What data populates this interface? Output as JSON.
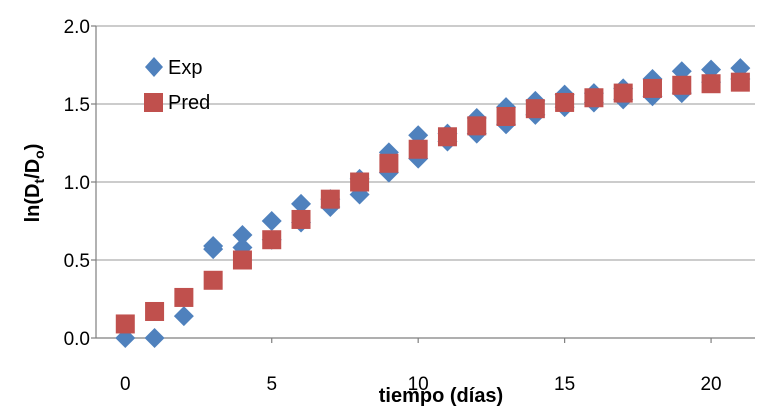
{
  "chart_data": {
    "type": "scatter",
    "title": "",
    "xlabel": "tiempo (días)",
    "ylabel": {
      "base": "ln(D",
      "sub1": "t",
      "mid": "/D",
      "sub2": "o",
      "end": ")"
    },
    "xlim": [
      -1,
      21.5
    ],
    "ylim": [
      0,
      2.0
    ],
    "x_ticks": [
      0,
      5,
      10,
      15,
      20
    ],
    "x_tick_labels": [
      "0",
      "5",
      "10",
      "15",
      "20"
    ],
    "y_ticks": [
      0.0,
      0.5,
      1.0,
      1.5,
      2.0
    ],
    "y_tick_labels": [
      "0.0",
      "0.5",
      "1.0",
      "1.5",
      "2.0"
    ],
    "grid": "horizontal",
    "legend": "top-left",
    "series": [
      {
        "name": "Exp",
        "marker": "diamond",
        "color": "#4f81bd",
        "points": [
          [
            0,
            0.0
          ],
          [
            1,
            0.0
          ],
          [
            2,
            0.14
          ],
          [
            3,
            0.57
          ],
          [
            3,
            0.59
          ],
          [
            4,
            0.58
          ],
          [
            4,
            0.66
          ],
          [
            5,
            0.63
          ],
          [
            5,
            0.75
          ],
          [
            6,
            0.74
          ],
          [
            6,
            0.86
          ],
          [
            7,
            0.84
          ],
          [
            7,
            0.89
          ],
          [
            8,
            0.92
          ],
          [
            8,
            1.02
          ],
          [
            9,
            1.06
          ],
          [
            9,
            1.19
          ],
          [
            10,
            1.15
          ],
          [
            10,
            1.3
          ],
          [
            11,
            1.26
          ],
          [
            11,
            1.31
          ],
          [
            12,
            1.31
          ],
          [
            12,
            1.41
          ],
          [
            13,
            1.37
          ],
          [
            13,
            1.48
          ],
          [
            14,
            1.43
          ],
          [
            14,
            1.52
          ],
          [
            15,
            1.48
          ],
          [
            15,
            1.56
          ],
          [
            16,
            1.51
          ],
          [
            16,
            1.57
          ],
          [
            17,
            1.53
          ],
          [
            17,
            1.6
          ],
          [
            18,
            1.55
          ],
          [
            18,
            1.66
          ],
          [
            19,
            1.57
          ],
          [
            19,
            1.71
          ],
          [
            20,
            1.64
          ],
          [
            20,
            1.72
          ],
          [
            21,
            1.66
          ],
          [
            21,
            1.73
          ]
        ]
      },
      {
        "name": "Pred",
        "marker": "square",
        "color": "#c0504d",
        "points": [
          [
            0,
            0.09
          ],
          [
            1,
            0.17
          ],
          [
            2,
            0.26
          ],
          [
            3,
            0.37
          ],
          [
            4,
            0.5
          ],
          [
            5,
            0.63
          ],
          [
            6,
            0.76
          ],
          [
            7,
            0.89
          ],
          [
            8,
            1.0
          ],
          [
            9,
            1.12
          ],
          [
            10,
            1.21
          ],
          [
            11,
            1.29
          ],
          [
            12,
            1.36
          ],
          [
            13,
            1.42
          ],
          [
            14,
            1.47
          ],
          [
            15,
            1.51
          ],
          [
            16,
            1.54
          ],
          [
            17,
            1.57
          ],
          [
            18,
            1.6
          ],
          [
            19,
            1.62
          ],
          [
            20,
            1.63
          ],
          [
            21,
            1.64
          ]
        ]
      }
    ]
  }
}
